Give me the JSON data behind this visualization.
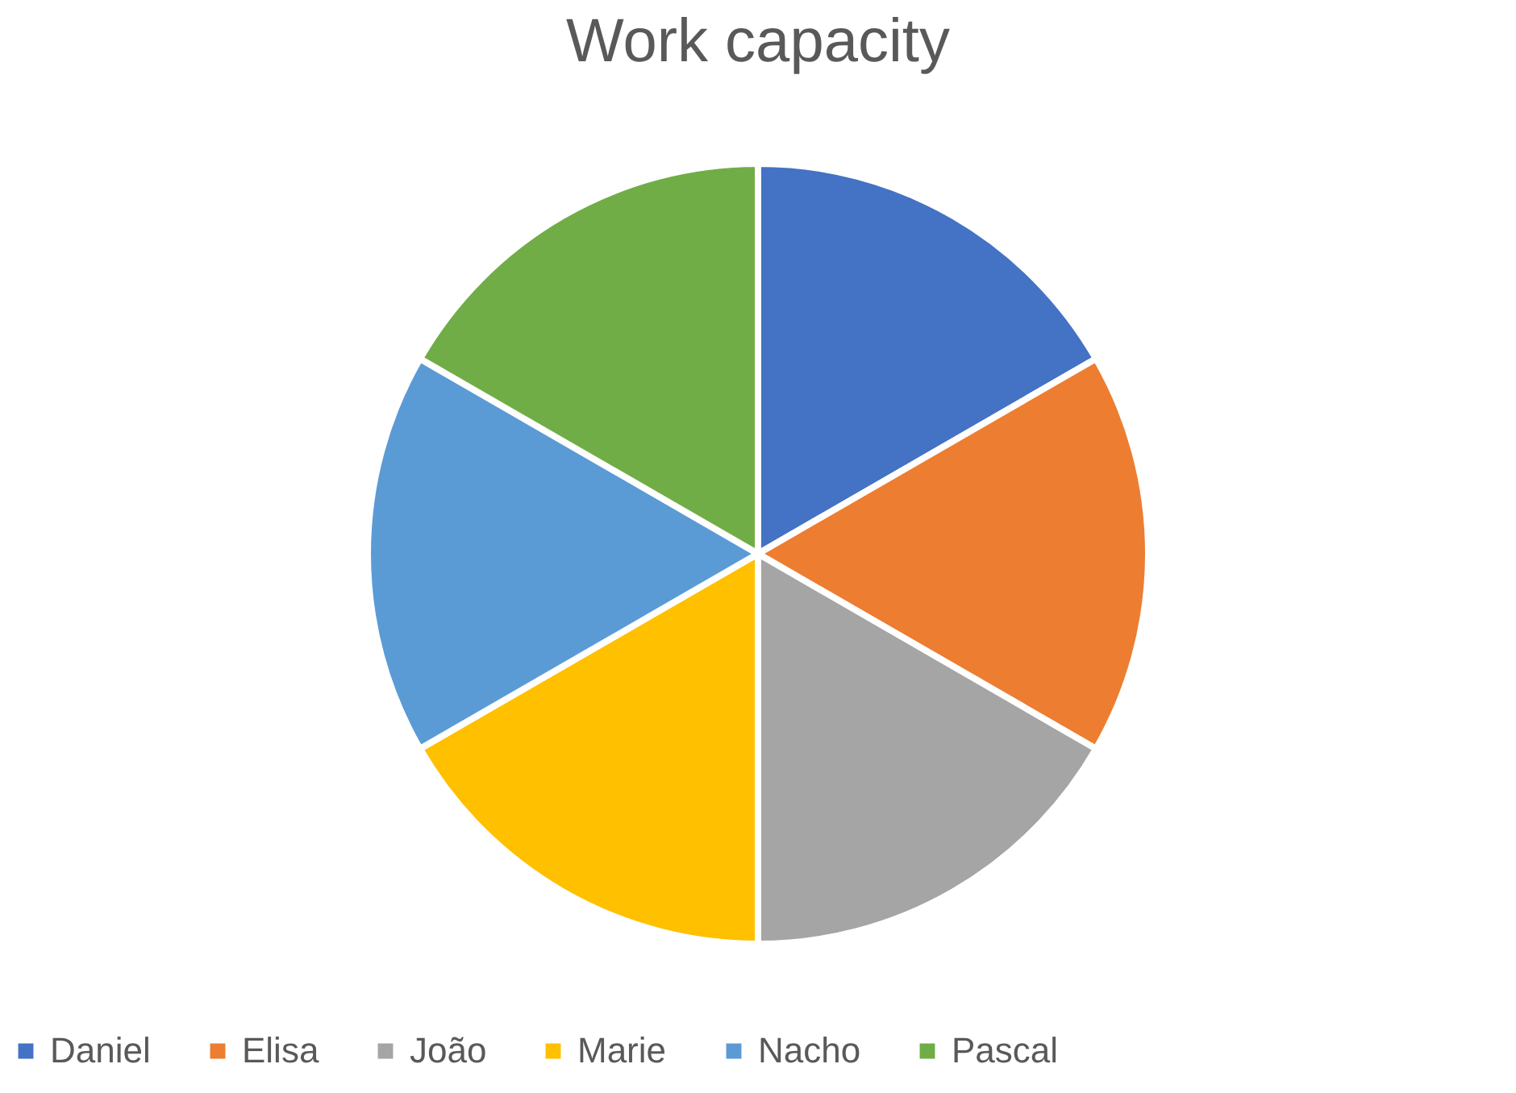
{
  "chart_data": {
    "type": "pie",
    "title": "Work capacity",
    "categories": [
      "Daniel",
      "Elisa",
      "João",
      "Marie",
      "Nacho",
      "Pascal"
    ],
    "values": [
      16.67,
      16.67,
      16.67,
      16.67,
      16.67,
      16.67
    ],
    "colors": [
      "#4472c4",
      "#ed7d31",
      "#a5a5a5",
      "#ffc000",
      "#5b9bd5",
      "#70ad47"
    ],
    "legend": "bottom"
  }
}
